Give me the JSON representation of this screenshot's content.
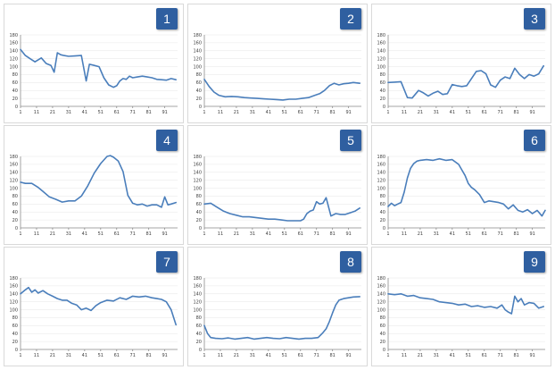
{
  "chart_data": [
    {
      "type": "line",
      "label": "1",
      "ylim": [
        0,
        180
      ],
      "yticks": [
        0,
        20,
        40,
        60,
        80,
        100,
        120,
        140,
        160,
        180
      ],
      "xticks": [
        "1",
        "11",
        "21",
        "31",
        "41",
        "51",
        "61",
        "71",
        "81",
        "91"
      ],
      "x": [
        1,
        4,
        7,
        10,
        14,
        17,
        20,
        22,
        24,
        26,
        28,
        31,
        35,
        39,
        42,
        44,
        47,
        50,
        53,
        56,
        59,
        61,
        63,
        65,
        67,
        69,
        71,
        74,
        77,
        80,
        83,
        86,
        89,
        92,
        95,
        98
      ],
      "values": [
        143,
        128,
        120,
        112,
        122,
        108,
        103,
        86,
        135,
        130,
        128,
        126,
        127,
        128,
        64,
        106,
        103,
        100,
        72,
        54,
        48,
        52,
        64,
        70,
        68,
        76,
        72,
        74,
        76,
        74,
        72,
        68,
        67,
        66,
        70,
        67
      ]
    },
    {
      "type": "line",
      "label": "2",
      "ylim": [
        0,
        180
      ],
      "yticks": [
        0,
        20,
        40,
        60,
        80,
        100,
        120,
        140,
        160,
        180
      ],
      "xticks": [
        "1",
        "11",
        "21",
        "31",
        "41",
        "51",
        "61",
        "71",
        "81",
        "91"
      ],
      "x": [
        1,
        4,
        7,
        10,
        14,
        18,
        22,
        26,
        30,
        34,
        38,
        42,
        46,
        50,
        54,
        58,
        62,
        66,
        70,
        73,
        76,
        79,
        82,
        85,
        88,
        91,
        94,
        98
      ],
      "values": [
        68,
        50,
        36,
        28,
        24,
        25,
        24,
        22,
        21,
        20,
        19,
        18,
        17,
        16,
        18,
        18,
        20,
        22,
        28,
        32,
        40,
        52,
        58,
        54,
        57,
        58,
        60,
        58
      ]
    },
    {
      "type": "line",
      "label": "3",
      "ylim": [
        0,
        180
      ],
      "yticks": [
        0,
        20,
        40,
        60,
        80,
        100,
        120,
        140,
        160,
        180
      ],
      "xticks": [
        "1",
        "11",
        "21",
        "31",
        "41",
        "51",
        "61",
        "71",
        "81",
        "91"
      ],
      "x": [
        1,
        5,
        9,
        13,
        16,
        20,
        23,
        26,
        29,
        32,
        35,
        38,
        41,
        44,
        47,
        50,
        53,
        56,
        59,
        62,
        65,
        68,
        71,
        74,
        77,
        80,
        83,
        86,
        89,
        92,
        95,
        98
      ],
      "values": [
        60,
        61,
        62,
        22,
        21,
        40,
        34,
        26,
        33,
        38,
        30,
        32,
        55,
        52,
        50,
        52,
        70,
        88,
        90,
        82,
        54,
        48,
        66,
        74,
        70,
        96,
        80,
        70,
        80,
        76,
        82,
        102
      ]
    },
    {
      "type": "line",
      "label": "4",
      "ylim": [
        0,
        180
      ],
      "yticks": [
        0,
        20,
        40,
        60,
        80,
        100,
        120,
        140,
        160,
        180
      ],
      "xticks": [
        "1",
        "11",
        "21",
        "31",
        "41",
        "51",
        "61",
        "71",
        "81",
        "91"
      ],
      "x": [
        1,
        4,
        8,
        12,
        15,
        19,
        23,
        27,
        31,
        35,
        39,
        43,
        47,
        51,
        55,
        57,
        59,
        62,
        65,
        68,
        71,
        74,
        77,
        80,
        83,
        86,
        89,
        91,
        93,
        95,
        98
      ],
      "values": [
        115,
        112,
        112,
        102,
        92,
        78,
        72,
        65,
        68,
        68,
        80,
        106,
        138,
        162,
        180,
        182,
        178,
        168,
        142,
        82,
        62,
        58,
        60,
        55,
        58,
        58,
        52,
        78,
        58,
        60,
        64
      ]
    },
    {
      "type": "line",
      "label": "5",
      "ylim": [
        0,
        180
      ],
      "yticks": [
        0,
        20,
        40,
        60,
        80,
        100,
        120,
        140,
        160,
        180
      ],
      "xticks": [
        "1",
        "11",
        "21",
        "31",
        "41",
        "51",
        "61",
        "71",
        "81",
        "91"
      ],
      "x": [
        1,
        5,
        9,
        13,
        17,
        21,
        25,
        29,
        33,
        37,
        41,
        45,
        49,
        53,
        57,
        61,
        63,
        65,
        67,
        69,
        71,
        73,
        75,
        77,
        80,
        83,
        86,
        89,
        92,
        95,
        98
      ],
      "values": [
        60,
        62,
        52,
        42,
        36,
        32,
        28,
        28,
        26,
        24,
        22,
        22,
        20,
        18,
        18,
        18,
        22,
        36,
        42,
        45,
        66,
        60,
        62,
        76,
        30,
        36,
        34,
        34,
        38,
        42,
        50
      ]
    },
    {
      "type": "line",
      "label": "6",
      "ylim": [
        0,
        180
      ],
      "yticks": [
        0,
        20,
        40,
        60,
        80,
        100,
        120,
        140,
        160,
        180
      ],
      "xticks": [
        "1",
        "11",
        "21",
        "31",
        "41",
        "51",
        "61",
        "71",
        "81",
        "91"
      ],
      "x": [
        1,
        3,
        5,
        7,
        9,
        11,
        13,
        15,
        17,
        19,
        21,
        25,
        29,
        33,
        37,
        41,
        45,
        47,
        49,
        51,
        53,
        55,
        58,
        61,
        64,
        67,
        70,
        73,
        76,
        79,
        82,
        85,
        88,
        91,
        94,
        97,
        99
      ],
      "values": [
        54,
        62,
        56,
        60,
        64,
        90,
        126,
        150,
        162,
        168,
        170,
        172,
        170,
        174,
        170,
        172,
        160,
        146,
        132,
        112,
        102,
        96,
        84,
        64,
        68,
        66,
        64,
        60,
        48,
        58,
        44,
        40,
        46,
        36,
        44,
        30,
        44
      ]
    },
    {
      "type": "line",
      "label": "7",
      "ylim": [
        0,
        180
      ],
      "yticks": [
        0,
        20,
        40,
        60,
        80,
        100,
        120,
        140,
        160,
        180
      ],
      "xticks": [
        "1",
        "11",
        "21",
        "31",
        "41",
        "51",
        "61",
        "71",
        "81",
        "91"
      ],
      "x": [
        1,
        4,
        6,
        8,
        10,
        12,
        15,
        18,
        21,
        24,
        27,
        30,
        33,
        36,
        39,
        42,
        45,
        48,
        51,
        55,
        59,
        63,
        67,
        71,
        75,
        79,
        83,
        86,
        89,
        92,
        95,
        98
      ],
      "values": [
        140,
        150,
        156,
        144,
        150,
        142,
        148,
        140,
        134,
        128,
        124,
        124,
        116,
        112,
        100,
        104,
        98,
        110,
        118,
        124,
        122,
        130,
        126,
        134,
        132,
        134,
        130,
        128,
        126,
        120,
        100,
        62
      ]
    },
    {
      "type": "line",
      "label": "8",
      "ylim": [
        0,
        180
      ],
      "yticks": [
        0,
        20,
        40,
        60,
        80,
        100,
        120,
        140,
        160,
        180
      ],
      "xticks": [
        "1",
        "11",
        "21",
        "31",
        "41",
        "51",
        "61",
        "71",
        "81",
        "91"
      ],
      "x": [
        1,
        3,
        5,
        8,
        12,
        16,
        20,
        24,
        28,
        32,
        36,
        40,
        44,
        48,
        52,
        56,
        60,
        64,
        68,
        72,
        75,
        77,
        79,
        81,
        83,
        85,
        88,
        91,
        94,
        98
      ],
      "values": [
        60,
        40,
        30,
        28,
        27,
        29,
        26,
        28,
        30,
        26,
        28,
        30,
        28,
        27,
        30,
        28,
        26,
        28,
        28,
        30,
        42,
        52,
        70,
        92,
        112,
        124,
        128,
        130,
        132,
        133
      ]
    },
    {
      "type": "line",
      "label": "9",
      "ylim": [
        0,
        180
      ],
      "yticks": [
        0,
        20,
        40,
        60,
        80,
        100,
        120,
        140,
        160,
        180
      ],
      "xticks": [
        "1",
        "11",
        "21",
        "31",
        "41",
        "51",
        "61",
        "71",
        "81",
        "91"
      ],
      "x": [
        1,
        5,
        9,
        13,
        17,
        21,
        25,
        29,
        33,
        37,
        41,
        45,
        49,
        53,
        57,
        61,
        65,
        69,
        72,
        74,
        76,
        78,
        80,
        82,
        84,
        86,
        89,
        92,
        95,
        98
      ],
      "values": [
        140,
        138,
        140,
        134,
        136,
        130,
        128,
        126,
        120,
        118,
        116,
        112,
        114,
        108,
        110,
        106,
        108,
        104,
        112,
        100,
        94,
        90,
        134,
        120,
        128,
        112,
        118,
        116,
        104,
        108
      ]
    }
  ]
}
